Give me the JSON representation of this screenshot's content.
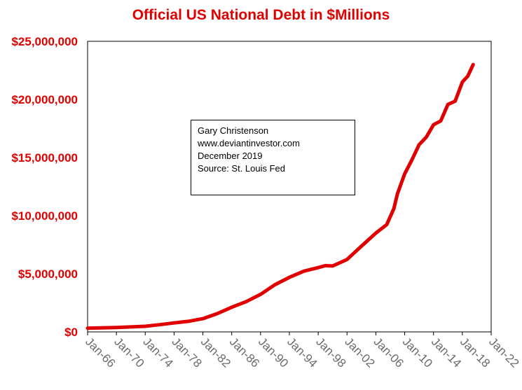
{
  "chart_data": {
    "type": "line",
    "title": "Official US National Debt in $Millions",
    "xlabel": "",
    "ylabel": "",
    "ylim": [
      0,
      25000000
    ],
    "xlim": [
      1966.0,
      2022.0
    ],
    "y_ticks": [
      0,
      5000000,
      10000000,
      15000000,
      20000000,
      25000000
    ],
    "y_tick_labels": [
      "$0",
      "$5,000,000",
      "$10,000,000",
      "$15,000,000",
      "$20,000,000",
      "$25,000,000"
    ],
    "x_ticks": [
      1966,
      1970,
      1974,
      1978,
      1982,
      1986,
      1990,
      1994,
      1998,
      2002,
      2006,
      2010,
      2014,
      2018,
      2022
    ],
    "x_tick_labels": [
      "Jan-66",
      "Jan-70",
      "Jan-74",
      "Jan-78",
      "Jan-82",
      "Jan-86",
      "Jan-90",
      "Jan-94",
      "Jan-98",
      "Jan-02",
      "Jan-06",
      "Jan-10",
      "Jan-14",
      "Jan-18",
      "Jan-22"
    ],
    "series": [
      {
        "name": "Official US National Debt",
        "color": "#e00000",
        "x": [
          1966.0,
          1968.0,
          1970.0,
          1972.0,
          1974.0,
          1976.0,
          1978.0,
          1980.0,
          1982.0,
          1984.0,
          1986.0,
          1988.0,
          1990.0,
          1992.0,
          1994.0,
          1996.0,
          1998.0,
          1999.0,
          2000.0,
          2002.0,
          2004.0,
          2006.0,
          2007.5,
          2008.5,
          2009.0,
          2010.0,
          2011.0,
          2012.0,
          2013.0,
          2014.0,
          2015.0,
          2016.0,
          2017.0,
          2018.0,
          2018.75,
          2019.5
        ],
        "values": [
          320000,
          350000,
          380000,
          430000,
          480000,
          620000,
          770000,
          910000,
          1140000,
          1570000,
          2120000,
          2600000,
          3230000,
          4060000,
          4690000,
          5220000,
          5530000,
          5700000,
          5670000,
          6230000,
          7380000,
          8500000,
          9230000,
          10600000,
          11900000,
          13600000,
          14800000,
          16100000,
          16750000,
          17820000,
          18150000,
          19570000,
          19850000,
          21500000,
          22000000,
          23000000
        ]
      }
    ]
  },
  "annotation": {
    "lines": [
      "Gary Christenson",
      "www.deviantinvestor.com",
      "December 2019",
      "Source: St. Louis Fed"
    ]
  }
}
